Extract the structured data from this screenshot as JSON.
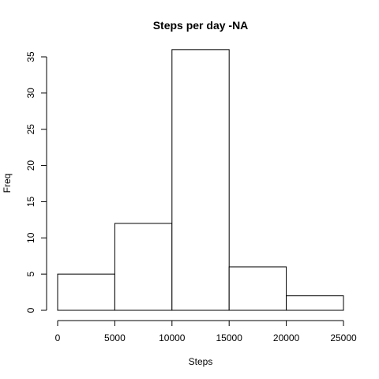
{
  "chart_data": {
    "type": "bar",
    "title": "Steps per day -NA",
    "xlabel": "Steps",
    "ylabel": "Freq",
    "bins": [
      {
        "from": 0,
        "to": 5000,
        "count": 5
      },
      {
        "from": 5000,
        "to": 10000,
        "count": 12
      },
      {
        "from": 10000,
        "to": 15000,
        "count": 36
      },
      {
        "from": 15000,
        "to": 20000,
        "count": 6
      },
      {
        "from": 20000,
        "to": 25000,
        "count": 2
      }
    ],
    "xlim": [
      0,
      25000
    ],
    "ylim": [
      0,
      35
    ],
    "x_ticks": [
      0,
      5000,
      10000,
      15000,
      20000,
      25000
    ],
    "y_ticks": [
      0,
      5,
      10,
      15,
      20,
      25,
      30,
      35
    ],
    "grid": false,
    "legend": "none",
    "colors": {
      "bar_fill": "#ffffff",
      "bar_stroke": "#000000"
    }
  }
}
